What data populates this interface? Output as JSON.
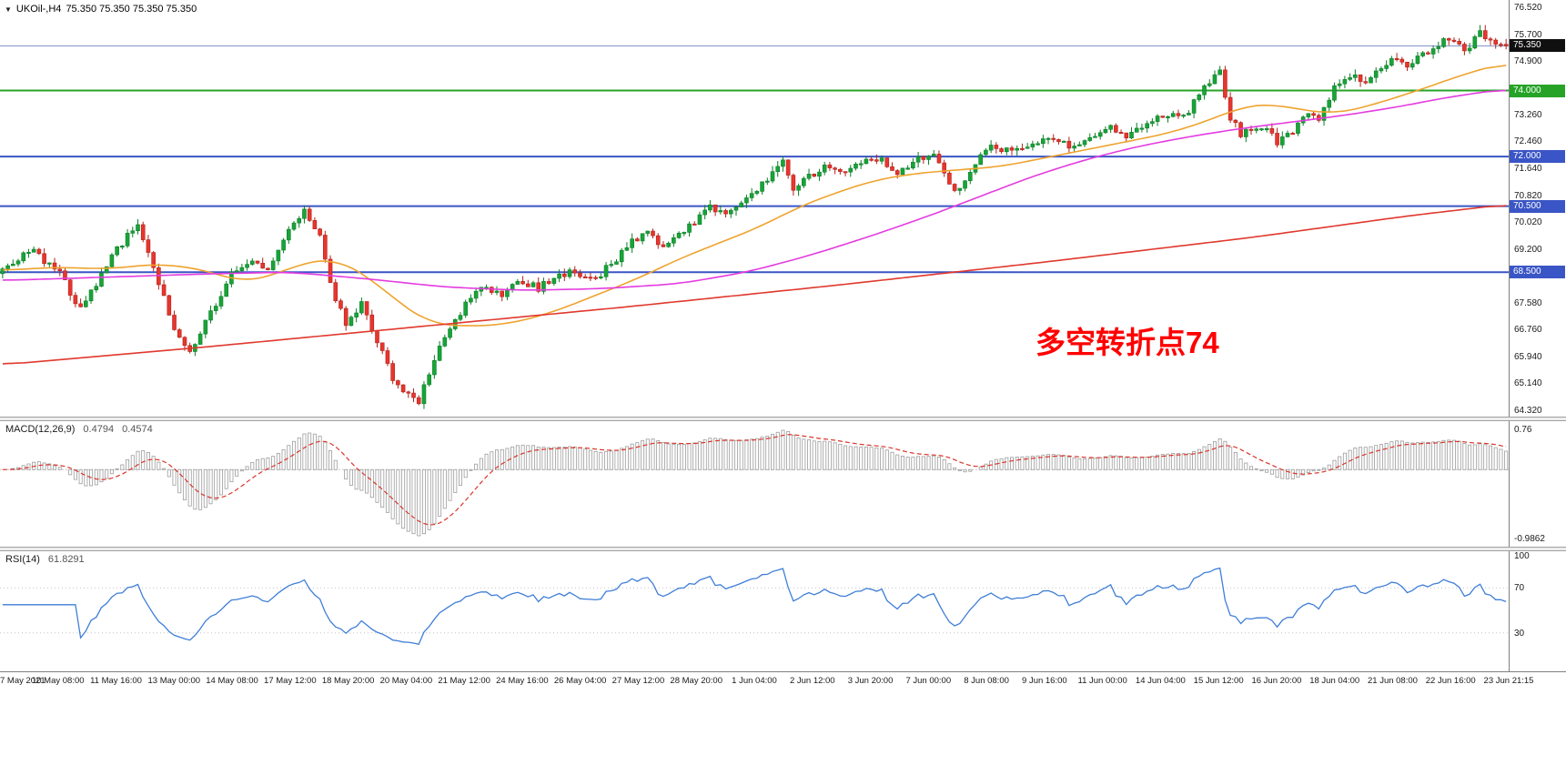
{
  "header": {
    "tick_icon": "▼",
    "symbol_title": "UKOil-,H4",
    "ohlc": "75.350 75.350 75.350 75.350"
  },
  "chart_data": [
    {
      "type": "candlestick",
      "symbol": "UKOil-",
      "timeframe": "H4",
      "ylim": [
        64.32,
        76.52
      ],
      "y_ticks": [
        "76.520",
        "75.700",
        "74.900",
        "73.260",
        "72.460",
        "71.640",
        "70.820",
        "70.020",
        "69.200",
        "67.580",
        "66.760",
        "65.940",
        "65.140",
        "64.320"
      ],
      "x_labels": [
        "7 May 2021",
        "10 May 08:00",
        "11 May 16:00",
        "13 May 00:00",
        "14 May 08:00",
        "17 May 12:00",
        "18 May 20:00",
        "20 May 04:00",
        "21 May 12:00",
        "24 May 16:00",
        "26 May 04:00",
        "27 May 12:00",
        "28 May 20:00",
        "1 Jun 04:00",
        "2 Jun 12:00",
        "3 Jun 20:00",
        "7 Jun 00:00",
        "8 Jun 08:00",
        "9 Jun 16:00",
        "11 Jun 00:00",
        "14 Jun 04:00",
        "15 Jun 12:00",
        "16 Jun 20:00",
        "18 Jun 04:00",
        "21 Jun 08:00",
        "22 Jun 16:00",
        "23 Jun 21:15"
      ],
      "levels": [
        {
          "price": 75.35,
          "label": "75.350",
          "line_color": "#8596c8",
          "badge_bg": "#101010",
          "width": 1,
          "role": "bid-line"
        },
        {
          "price": 74.0,
          "label": "74.000",
          "line_color": "#26a326",
          "badge_bg": "#26a326",
          "width": 2,
          "role": "horizontal-line"
        },
        {
          "price": 72.0,
          "label": "72.000",
          "line_color": "#3a55c5",
          "badge_bg": "#3a55c5",
          "width": 2,
          "role": "horizontal-line"
        },
        {
          "price": 70.5,
          "label": "70.500",
          "line_color": "#3a55c5",
          "badge_bg": "#3a55c5",
          "width": 2,
          "role": "horizontal-line"
        },
        {
          "price": 68.5,
          "label": "68.500",
          "line_color": "#3a55c5",
          "badge_bg": "#3a55c5",
          "width": 2,
          "role": "horizontal-line"
        }
      ],
      "annotation": {
        "text": "多空转折点74",
        "color": "#ff0000"
      },
      "candles_total": 290,
      "close_waypoints": [
        [
          0,
          68.5
        ],
        [
          3,
          68.9
        ],
        [
          6,
          69.2
        ],
        [
          9,
          68.7
        ],
        [
          11,
          68.55
        ],
        [
          13,
          67.9
        ],
        [
          15,
          67.4
        ],
        [
          18,
          68.1
        ],
        [
          22,
          69.2
        ],
        [
          26,
          70.0
        ],
        [
          29,
          68.7
        ],
        [
          33,
          66.7
        ],
        [
          36,
          66.1
        ],
        [
          39,
          67.0
        ],
        [
          44,
          68.4
        ],
        [
          48,
          68.8
        ],
        [
          51,
          68.5
        ],
        [
          55,
          69.7
        ],
        [
          58,
          70.35
        ],
        [
          61,
          69.6
        ],
        [
          63,
          68.1
        ],
        [
          66,
          66.9
        ],
        [
          69,
          67.6
        ],
        [
          72,
          66.4
        ],
        [
          75,
          65.3
        ],
        [
          77,
          64.9
        ],
        [
          80,
          64.55
        ],
        [
          83,
          65.9
        ],
        [
          88,
          67.3
        ],
        [
          92,
          68.1
        ],
        [
          96,
          67.8
        ],
        [
          99,
          68.3
        ],
        [
          103,
          68.0
        ],
        [
          107,
          68.45
        ],
        [
          110,
          68.5
        ],
        [
          114,
          68.3
        ],
        [
          118,
          68.9
        ],
        [
          121,
          69.4
        ],
        [
          124,
          69.65
        ],
        [
          127,
          69.2
        ],
        [
          132,
          69.9
        ],
        [
          136,
          70.45
        ],
        [
          139,
          70.2
        ],
        [
          143,
          70.7
        ],
        [
          147,
          71.3
        ],
        [
          150,
          71.85
        ],
        [
          152,
          71.05
        ],
        [
          154,
          71.3
        ],
        [
          158,
          71.7
        ],
        [
          162,
          71.5
        ],
        [
          165,
          71.8
        ],
        [
          169,
          71.95
        ],
        [
          172,
          71.5
        ],
        [
          176,
          71.9
        ],
        [
          179,
          72.05
        ],
        [
          182,
          71.2
        ],
        [
          184,
          70.95
        ],
        [
          187,
          71.8
        ],
        [
          190,
          72.4
        ],
        [
          194,
          72.1
        ],
        [
          198,
          72.35
        ],
        [
          202,
          72.6
        ],
        [
          205,
          72.25
        ],
        [
          209,
          72.55
        ],
        [
          213,
          72.85
        ],
        [
          216,
          72.6
        ],
        [
          220,
          73.0
        ],
        [
          224,
          73.3
        ],
        [
          227,
          73.15
        ],
        [
          231,
          74.1
        ],
        [
          234,
          74.55
        ],
        [
          236,
          73.2
        ],
        [
          238,
          72.7
        ],
        [
          242,
          72.9
        ],
        [
          245,
          72.45
        ],
        [
          248,
          72.8
        ],
        [
          251,
          73.3
        ],
        [
          253,
          73.15
        ],
        [
          256,
          74.1
        ],
        [
          259,
          74.5
        ],
        [
          262,
          74.25
        ],
        [
          264,
          74.6
        ],
        [
          267,
          75.0
        ],
        [
          270,
          74.7
        ],
        [
          275,
          75.3
        ],
        [
          278,
          75.6
        ],
        [
          281,
          75.2
        ],
        [
          284,
          75.75
        ],
        [
          286,
          75.5
        ],
        [
          289,
          75.35
        ]
      ],
      "ma_series": [
        {
          "name": "ma-fast-orange",
          "color": "#eea32e",
          "points": [
            [
              0,
              68.55
            ],
            [
              10,
              68.65
            ],
            [
              20,
              68.6
            ],
            [
              30,
              68.75
            ],
            [
              38,
              68.6
            ],
            [
              46,
              68.2
            ],
            [
              52,
              68.4
            ],
            [
              58,
              68.8
            ],
            [
              64,
              68.9
            ],
            [
              70,
              68.4
            ],
            [
              76,
              67.6
            ],
            [
              82,
              66.95
            ],
            [
              90,
              66.85
            ],
            [
              98,
              66.95
            ],
            [
              106,
              67.3
            ],
            [
              114,
              67.8
            ],
            [
              122,
              68.3
            ],
            [
              130,
              68.9
            ],
            [
              138,
              69.4
            ],
            [
              146,
              69.9
            ],
            [
              152,
              70.4
            ],
            [
              160,
              70.9
            ],
            [
              168,
              71.3
            ],
            [
              176,
              71.5
            ],
            [
              184,
              71.6
            ],
            [
              192,
              71.7
            ],
            [
              200,
              71.95
            ],
            [
              208,
              72.2
            ],
            [
              216,
              72.45
            ],
            [
              224,
              72.7
            ],
            [
              232,
              73.1
            ],
            [
              238,
              73.5
            ],
            [
              244,
              73.6
            ],
            [
              250,
              73.4
            ],
            [
              256,
              73.3
            ],
            [
              262,
              73.5
            ],
            [
              268,
              73.8
            ],
            [
              274,
              74.1
            ],
            [
              280,
              74.45
            ],
            [
              289,
              74.85
            ]
          ]
        },
        {
          "name": "ma-mid-magenta",
          "color": "#e43ce0",
          "points": [
            [
              0,
              68.25
            ],
            [
              20,
              68.35
            ],
            [
              40,
              68.45
            ],
            [
              55,
              68.5
            ],
            [
              70,
              68.3
            ],
            [
              85,
              68.05
            ],
            [
              100,
              67.95
            ],
            [
              115,
              68.0
            ],
            [
              130,
              68.15
            ],
            [
              143,
              68.5
            ],
            [
              155,
              69.0
            ],
            [
              167,
              69.6
            ],
            [
              178,
              70.2
            ],
            [
              188,
              70.8
            ],
            [
              198,
              71.4
            ],
            [
              208,
              71.9
            ],
            [
              218,
              72.3
            ],
            [
              228,
              72.6
            ],
            [
              238,
              72.85
            ],
            [
              248,
              73.05
            ],
            [
              258,
              73.25
            ],
            [
              268,
              73.5
            ],
            [
              278,
              73.8
            ],
            [
              289,
              74.05
            ]
          ]
        },
        {
          "name": "ma-slow-red",
          "color": "#e0392e",
          "points": [
            [
              0,
              65.7
            ],
            [
              40,
              66.25
            ],
            [
              80,
              66.85
            ],
            [
              120,
              67.45
            ],
            [
              160,
              68.1
            ],
            [
              200,
              68.8
            ],
            [
              240,
              69.55
            ],
            [
              270,
              70.2
            ],
            [
              289,
              70.55
            ]
          ]
        }
      ],
      "colors": {
        "candle_up": "#18a438",
        "candle_up_border": "#0b7e27",
        "candle_down": "#e8352d",
        "candle_down_border": "#b0221b"
      }
    },
    {
      "type": "macd",
      "label": "MACD(12,26,9)",
      "macd_value": "0.4794",
      "signal_value": "0.4574",
      "params": [
        12,
        26,
        9
      ],
      "y_ticks": {
        "top": "0.76",
        "bottom": "-0.9862"
      },
      "histogram_color": "#9c9c9c",
      "signal_color": "#d8362b"
    },
    {
      "type": "rsi",
      "label": "RSI(14)",
      "value": "61.8291",
      "period": 14,
      "levels": [
        70,
        30
      ],
      "y_ticks": [
        {
          "label": "100",
          "value": 100
        },
        {
          "label": "70",
          "value": 70
        },
        {
          "label": "30",
          "value": 30
        }
      ],
      "line_color": "#3f7ed8"
    }
  ]
}
